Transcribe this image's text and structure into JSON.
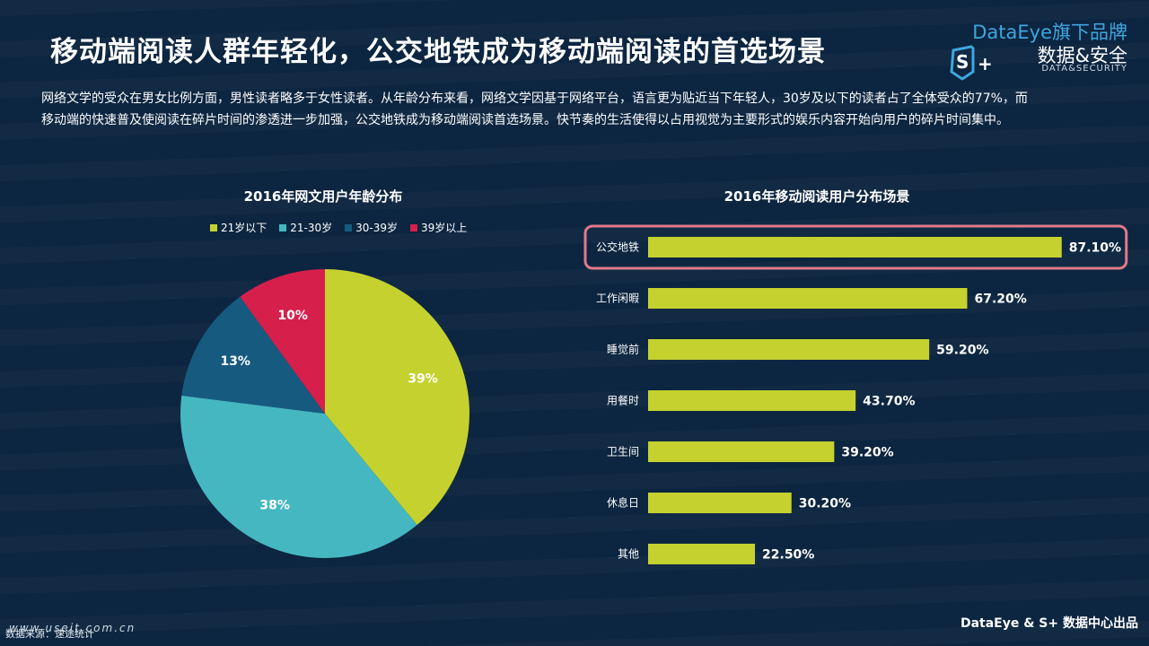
{
  "page": {
    "title": "移动端阅读人群年轻化，公交地铁成为移动端阅读的首选场景",
    "intro": "网络文学的受众在男女比例方面，男性读者略多于女性读者。从年龄分布来看，网络文学因基于网络平台，语言更为贴近当下年轻人，30岁及以下的读者占了全体受众的77%，而移动端的快速普及使阅读在碎片时间的渗透进一步加强，公交地铁成为移动端阅读首选场景。快节奏的生活使得以占用视觉为主要形式的娱乐内容开始向用户的碎片时间集中。",
    "source": "数据来源：速途统计",
    "watermark_url": "www.useit.com.cn",
    "footer": "DataEye & S+ 数据中心出品"
  },
  "brand": {
    "top": "DataEye旗下品牌",
    "cn": "数据&安全",
    "en": "DATA&SECURITY",
    "logo_icon": "s-plus-shield-icon",
    "accent": "#3fa6df"
  },
  "chart_data": [
    {
      "type": "pie",
      "title": "2016年网文用户年龄分布",
      "labels": [
        "21岁以下",
        "21-30岁",
        "30-39岁",
        "39岁以上"
      ],
      "values": [
        39,
        38,
        13,
        10
      ],
      "value_labels": [
        "39%",
        "38%",
        "13%",
        "10%"
      ],
      "colors": [
        "#c5d12e",
        "#45b7c1",
        "#175a80",
        "#d71f4c"
      ],
      "legend": "top"
    },
    {
      "type": "bar",
      "orientation": "horizontal",
      "title": "2016年移动阅读用户分布场景",
      "categories": [
        "公交地铁",
        "工作闲暇",
        "睡觉前",
        "用餐时",
        "卫生间",
        "休息日",
        "其他"
      ],
      "values": [
        87.1,
        67.2,
        59.2,
        43.7,
        39.2,
        30.2,
        22.5
      ],
      "value_labels": [
        "87.10%",
        "67.20%",
        "59.20%",
        "43.70%",
        "39.20%",
        "30.20%",
        "22.50%"
      ],
      "color": "#c5d12e",
      "highlight_category": "公交地铁",
      "highlight_color": "#e07a8a",
      "xlim": [
        0,
        100
      ]
    }
  ]
}
